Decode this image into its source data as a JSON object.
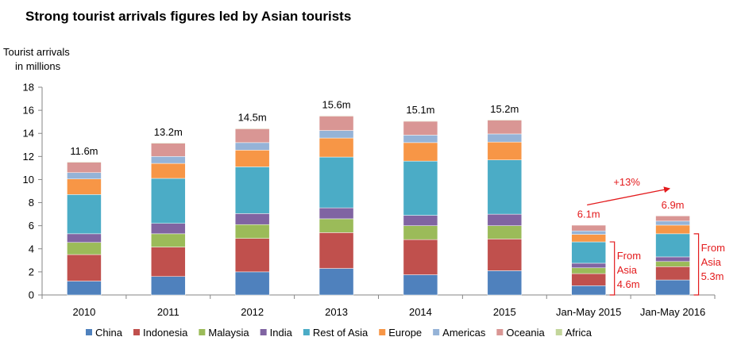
{
  "chart_data": {
    "type": "bar",
    "stacked": true,
    "title": "Strong tourist arrivals figures led by Asian tourists",
    "ylabel_line1": "Tourist arrivals",
    "ylabel_line2": "in millions",
    "ylim": [
      0,
      18
    ],
    "yticks": [
      0,
      2,
      4,
      6,
      8,
      10,
      12,
      14,
      16,
      18
    ],
    "grid": false,
    "legend_position": "bottom",
    "categories": [
      "2010",
      "2011",
      "2012",
      "2013",
      "2014",
      "2015",
      "Jan-May 2015",
      "Jan-May 2016"
    ],
    "totals": [
      "11.6m",
      "13.2m",
      "14.5m",
      "15.6m",
      "15.1m",
      "15.2m",
      "6.1m",
      "6.9m"
    ],
    "series": [
      {
        "name": "China",
        "color": "#4f81bd",
        "values": [
          1.2,
          1.6,
          2.0,
          2.3,
          1.75,
          2.1,
          0.8,
          1.3
        ]
      },
      {
        "name": "Indonesia",
        "color": "#c0504d",
        "values": [
          2.3,
          2.55,
          2.9,
          3.1,
          3.05,
          2.75,
          1.05,
          1.15
        ]
      },
      {
        "name": "Malaysia",
        "color": "#9bbb59",
        "values": [
          1.05,
          1.15,
          1.2,
          1.2,
          1.2,
          1.15,
          0.5,
          0.45
        ]
      },
      {
        "name": "India",
        "color": "#8064a2",
        "values": [
          0.75,
          0.9,
          0.95,
          0.95,
          0.9,
          1.0,
          0.4,
          0.4
        ]
      },
      {
        "name": "Rest of Asia",
        "color": "#4bacc6",
        "values": [
          3.4,
          3.9,
          4.05,
          4.4,
          4.7,
          4.7,
          1.85,
          2.0
        ]
      },
      {
        "name": "Europe",
        "color": "#f79646",
        "values": [
          1.35,
          1.3,
          1.45,
          1.65,
          1.6,
          1.55,
          0.65,
          0.75
        ]
      },
      {
        "name": "Americas",
        "color": "#95b3d7",
        "values": [
          0.55,
          0.6,
          0.65,
          0.65,
          0.65,
          0.7,
          0.3,
          0.35
        ]
      },
      {
        "name": "Oceania",
        "color": "#d99694",
        "values": [
          0.9,
          1.15,
          1.2,
          1.25,
          1.2,
          1.2,
          0.5,
          0.45
        ]
      },
      {
        "name": "Africa",
        "color": "#c3d69b",
        "values": [
          0.05,
          0.05,
          0.05,
          0.05,
          0.05,
          0.05,
          0.03,
          0.03
        ]
      }
    ],
    "annotations": {
      "growth_label": "+13%",
      "asia_note_2015": [
        "From",
        "Asia",
        "4.6m"
      ],
      "asia_note_2016": [
        "From",
        "Asia",
        "5.3m"
      ],
      "annotation_color": "#e31a1c"
    }
  }
}
